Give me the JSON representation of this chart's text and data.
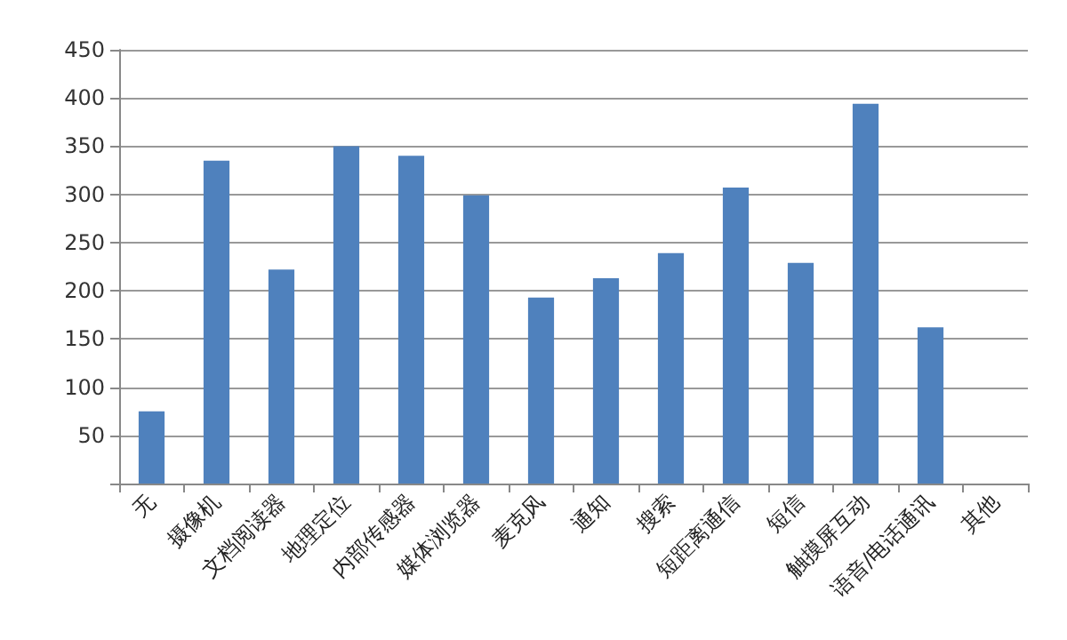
{
  "chart_data": {
    "type": "bar",
    "categories": [
      "无",
      "摄像机",
      "文档阅读器",
      "地理定位",
      "内部传感器",
      "媒体浏览器",
      "麦克风",
      "通知",
      "搜索",
      "短距离通信",
      "短信",
      "触摸屏互动",
      "语音/电话通讯",
      "其他"
    ],
    "values": [
      75,
      335,
      222,
      350,
      340,
      299,
      193,
      213,
      239,
      307,
      229,
      394,
      162,
      0
    ],
    "color": "#4f81bd",
    "ylim": [
      0,
      450
    ],
    "yticks": [
      {
        "value": 0,
        "label": null
      },
      50,
      100,
      150,
      200,
      250,
      300,
      350,
      400,
      450
    ],
    "grid": "y"
  }
}
